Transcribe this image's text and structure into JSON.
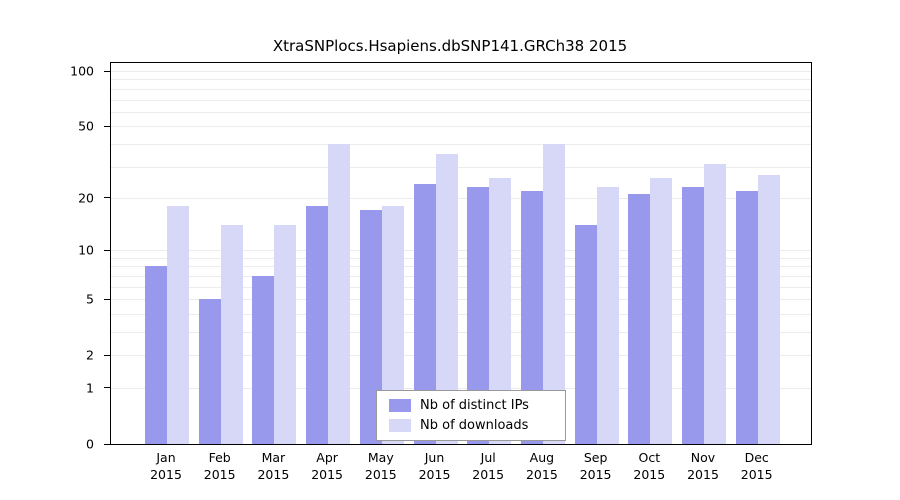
{
  "title": "XtraSNPlocs.Hsapiens.dbSNP141.GRCh38 2015",
  "chart_data": {
    "type": "bar",
    "scale": "log1p",
    "title": "XtraSNPlocs.Hsapiens.dbSNP141.GRCh38 2015",
    "year": "2015",
    "categories": [
      "Jan",
      "Feb",
      "Mar",
      "Apr",
      "May",
      "Jun",
      "Jul",
      "Aug",
      "Sep",
      "Oct",
      "Nov",
      "Dec"
    ],
    "series": [
      {
        "name": "Nb of distinct IPs",
        "color": "#9898ec",
        "values": [
          8,
          5,
          7,
          18,
          17,
          24,
          23,
          22,
          14,
          21,
          23,
          22
        ]
      },
      {
        "name": "Nb of downloads",
        "color": "#d7d7f8",
        "values": [
          18,
          14,
          14,
          40,
          18,
          35,
          26,
          40,
          23,
          26,
          31,
          27
        ]
      }
    ],
    "yticks": [
      0,
      1,
      2,
      5,
      10,
      20,
      50,
      100
    ],
    "gridlines": [
      1,
      2,
      3,
      4,
      5,
      6,
      7,
      8,
      9,
      10,
      20,
      30,
      40,
      50,
      60,
      70,
      80,
      90,
      100
    ],
    "ylim": [
      0,
      100
    ],
    "xlabel": "",
    "ylabel": "",
    "legend_position": "bottom-center",
    "grid": true
  }
}
